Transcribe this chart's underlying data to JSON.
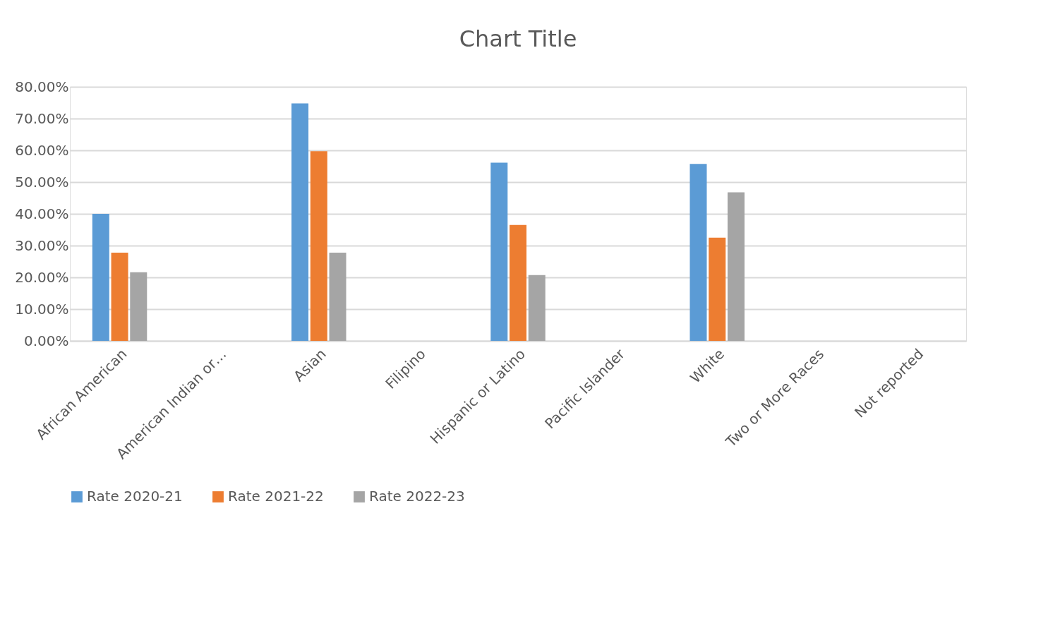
{
  "chart_data": {
    "type": "bar",
    "title": "Chart Title",
    "categories": [
      "African American",
      "American Indian or…",
      "Asian",
      "Filipino",
      "Hispanic or Latino",
      "Pacific Islander",
      "White",
      "Two or More Races",
      "Not reported"
    ],
    "series": [
      {
        "name": "Rate 2020-21",
        "color": "#5b9bd5",
        "values": [
          0.4,
          null,
          0.748,
          null,
          0.561,
          null,
          0.557,
          null,
          null
        ]
      },
      {
        "name": "Rate 2021-22",
        "color": "#ed7d31",
        "values": [
          0.278,
          null,
          0.597,
          null,
          0.365,
          null,
          0.325,
          null,
          null
        ]
      },
      {
        "name": "Rate 2022-23",
        "color": "#a5a5a5",
        "values": [
          0.216,
          null,
          0.278,
          null,
          0.207,
          null,
          0.468,
          null,
          null
        ]
      }
    ],
    "ylim": [
      0,
      0.8
    ],
    "yticks": [
      {
        "value": 0,
        "label": "0.00%"
      },
      {
        "value": 0.1,
        "label": "10.00%"
      },
      {
        "value": 0.2,
        "label": "20.00%"
      },
      {
        "value": 0.3,
        "label": "30.00%"
      },
      {
        "value": 0.4,
        "label": "40.00%"
      },
      {
        "value": 0.5,
        "label": "50.00%"
      },
      {
        "value": 0.6,
        "label": "60.00%"
      },
      {
        "value": 0.7,
        "label": "70.00%"
      },
      {
        "value": 0.8,
        "label": "80.00%"
      }
    ],
    "grid": "y",
    "legend": "bottom"
  }
}
